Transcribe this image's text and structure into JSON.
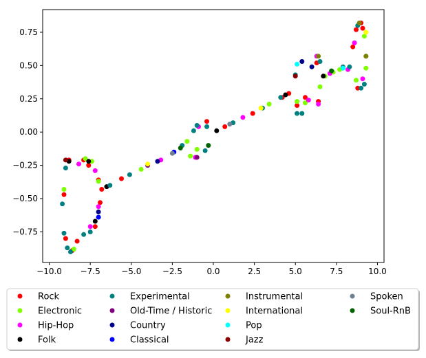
{
  "chart_data": {
    "type": "scatter",
    "title": "",
    "xlabel": "",
    "ylabel": "",
    "xlim": [
      -10.4,
      10.4
    ],
    "ylim": [
      -0.98,
      0.92
    ],
    "xticks": [
      -10.0,
      -7.5,
      -5.0,
      -2.5,
      0.0,
      2.5,
      5.0,
      7.5,
      10.0
    ],
    "xtick_labels": [
      "−10.0",
      "−7.5",
      "−5.0",
      "−2.5",
      "0.0",
      "2.5",
      "5.0",
      "7.5",
      "10.0"
    ],
    "yticks": [
      -0.75,
      -0.5,
      -0.25,
      0.0,
      0.25,
      0.5,
      0.75
    ],
    "ytick_labels": [
      "−0.75",
      "−0.50",
      "−0.25",
      "0.00",
      "0.25",
      "0.50",
      "0.75"
    ],
    "grid": false,
    "legend_placement": "below plot, 4 columns",
    "series": [
      {
        "name": "Rock",
        "color": "#ff0000",
        "points": [
          [
            -9.1,
            -0.47
          ],
          [
            -9.0,
            -0.8
          ],
          [
            -8.8,
            -0.21
          ],
          [
            -8.6,
            -0.89
          ],
          [
            -8.3,
            -0.82
          ],
          [
            -7.9,
            -0.21
          ],
          [
            -7.6,
            -0.25
          ],
          [
            -7.2,
            -0.71
          ],
          [
            -7.0,
            -0.36
          ],
          [
            -6.9,
            -0.53
          ],
          [
            -6.8,
            -0.43
          ],
          [
            -5.6,
            -0.35
          ],
          [
            -0.4,
            0.08
          ],
          [
            0.7,
            0.04
          ],
          [
            2.4,
            0.14
          ],
          [
            4.2,
            0.26
          ],
          [
            4.6,
            0.29
          ],
          [
            5.1,
            0.2
          ],
          [
            5.6,
            0.26
          ],
          [
            6.3,
            0.52
          ],
          [
            6.4,
            0.23
          ],
          [
            8.5,
            0.64
          ],
          [
            8.7,
            0.77
          ],
          [
            8.8,
            0.33
          ],
          [
            9.0,
            0.82
          ],
          [
            9.1,
            0.78
          ]
        ]
      },
      {
        "name": "Electronic",
        "color": "#7fff00",
        "points": [
          [
            -9.1,
            -0.43
          ],
          [
            -8.5,
            -0.88
          ],
          [
            -7.8,
            -0.2
          ],
          [
            -7.4,
            -0.22
          ],
          [
            -7.0,
            -0.37
          ],
          [
            -4.4,
            -0.28
          ],
          [
            -1.6,
            -0.07
          ],
          [
            -1.4,
            -0.18
          ],
          [
            -1.0,
            -0.13
          ],
          [
            3.4,
            0.21
          ],
          [
            5.1,
            0.23
          ],
          [
            5.6,
            0.22
          ],
          [
            6.5,
            0.34
          ],
          [
            6.8,
            0.42
          ],
          [
            7.3,
            0.45
          ],
          [
            7.7,
            0.47
          ],
          [
            8.7,
            0.39
          ],
          [
            9.2,
            0.72
          ],
          [
            9.3,
            0.48
          ]
        ]
      },
      {
        "name": "Hip-Hop",
        "color": "#ff00ff",
        "points": [
          [
            -8.2,
            -0.24
          ],
          [
            -7.5,
            -0.71
          ],
          [
            -7.2,
            -0.29
          ],
          [
            -7.0,
            -0.56
          ],
          [
            -3.2,
            -0.21
          ],
          [
            -1.1,
            -0.19
          ],
          [
            -0.9,
            0.04
          ],
          [
            1.8,
            0.11
          ],
          [
            5.8,
            0.24
          ],
          [
            6.3,
            0.57
          ],
          [
            6.4,
            0.21
          ],
          [
            7.1,
            0.44
          ],
          [
            8.2,
            0.47
          ],
          [
            8.6,
            0.67
          ],
          [
            9.1,
            0.4
          ]
        ]
      },
      {
        "name": "Folk",
        "color": "#000000",
        "points": [
          [
            -8.8,
            -0.22
          ],
          [
            -7.6,
            -0.22
          ],
          [
            -7.2,
            -0.67
          ],
          [
            -6.5,
            -0.41
          ],
          [
            0.2,
            0.01
          ],
          [
            4.4,
            0.28
          ],
          [
            6.7,
            0.42
          ]
        ]
      },
      {
        "name": "Experimental",
        "color": "#008080",
        "points": [
          [
            -9.2,
            -0.54
          ],
          [
            -9.1,
            -0.76
          ],
          [
            -9.0,
            -0.27
          ],
          [
            -8.9,
            -0.87
          ],
          [
            -8.7,
            -0.9
          ],
          [
            -7.9,
            -0.77
          ],
          [
            -7.5,
            -0.75
          ],
          [
            -6.3,
            -0.4
          ],
          [
            -5.1,
            -0.32
          ],
          [
            -1.9,
            -0.1
          ],
          [
            -1.2,
            0.01
          ],
          [
            -1.0,
            0.05
          ],
          [
            -0.5,
            -0.14
          ],
          [
            -0.4,
            0.04
          ],
          [
            1.2,
            0.07
          ],
          [
            3.0,
            0.18
          ],
          [
            4.1,
            0.26
          ],
          [
            5.0,
            0.43
          ],
          [
            5.1,
            0.14
          ],
          [
            5.4,
            0.14
          ],
          [
            6.5,
            0.53
          ],
          [
            7.9,
            0.49
          ],
          [
            8.3,
            0.49
          ],
          [
            8.8,
            0.8
          ],
          [
            9.0,
            0.33
          ],
          [
            9.2,
            0.36
          ],
          [
            9.3,
            0.57
          ]
        ]
      },
      {
        "name": "Old-Time / Historic",
        "color": "#800080",
        "points": [
          [
            -4.0,
            -0.25
          ],
          [
            -1.0,
            -0.19
          ]
        ]
      },
      {
        "name": "Country",
        "color": "#00008b",
        "points": [
          [
            -7.0,
            -0.6
          ],
          [
            -3.4,
            -0.22
          ],
          [
            5.4,
            0.53
          ],
          [
            6.0,
            0.49
          ]
        ]
      },
      {
        "name": "Classical",
        "color": "#0000ff",
        "points": [
          [
            -7.0,
            -0.64
          ],
          [
            -2.4,
            -0.15
          ]
        ]
      },
      {
        "name": "Instrumental",
        "color": "#808000",
        "points": [
          [
            6.4,
            0.57
          ],
          [
            8.9,
            0.82
          ],
          [
            9.3,
            0.57
          ]
        ]
      },
      {
        "name": "International",
        "color": "#ffff00",
        "points": [
          [
            -4.0,
            -0.24
          ],
          [
            2.9,
            0.18
          ],
          [
            9.3,
            0.75
          ]
        ]
      },
      {
        "name": "Pop",
        "color": "#00ffff",
        "points": [
          [
            5.1,
            0.51
          ],
          [
            7.9,
            0.48
          ]
        ]
      },
      {
        "name": "Jazz",
        "color": "#8b0000",
        "points": [
          [
            -9.0,
            -0.21
          ],
          [
            5.0,
            0.42
          ]
        ]
      },
      {
        "name": "Spoken",
        "color": "#708090",
        "points": [
          [
            -2.5,
            -0.16
          ],
          [
            1.0,
            0.06
          ]
        ]
      },
      {
        "name": "Soul-RnB",
        "color": "#006400",
        "points": [
          [
            -2.0,
            -0.12
          ],
          [
            -0.3,
            -0.1
          ],
          [
            7.2,
            0.46
          ]
        ]
      }
    ]
  }
}
